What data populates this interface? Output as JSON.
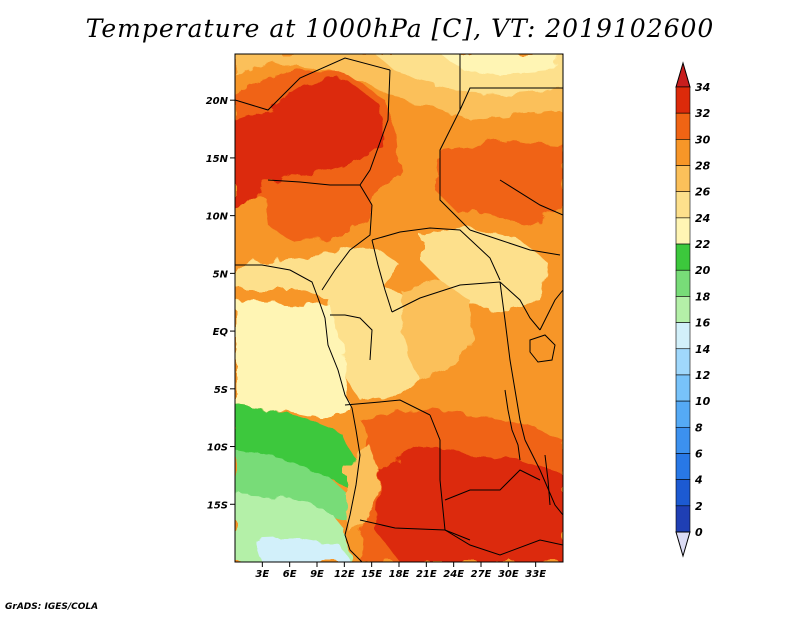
{
  "title": "Temperature at 1000hPa [C], VT: 2019102600",
  "credit": "GrADS: IGES/COLA",
  "map": {
    "lon_range": [
      0,
      36
    ],
    "lat_range": [
      -20,
      24
    ],
    "lon_ticks": [
      {
        "value": 3,
        "label": "3E"
      },
      {
        "value": 6,
        "label": "6E"
      },
      {
        "value": 9,
        "label": "9E"
      },
      {
        "value": 12,
        "label": "12E"
      },
      {
        "value": 15,
        "label": "15E"
      },
      {
        "value": 18,
        "label": "18E"
      },
      {
        "value": 21,
        "label": "21E"
      },
      {
        "value": 24,
        "label": "24E"
      },
      {
        "value": 27,
        "label": "27E"
      },
      {
        "value": 30,
        "label": "30E"
      },
      {
        "value": 33,
        "label": "33E"
      }
    ],
    "lat_ticks": [
      {
        "value": 20,
        "label": "20N"
      },
      {
        "value": 15,
        "label": "15N"
      },
      {
        "value": 10,
        "label": "10N"
      },
      {
        "value": 5,
        "label": "5N"
      },
      {
        "value": 0,
        "label": "EQ"
      },
      {
        "value": -5,
        "label": "5S"
      },
      {
        "value": -10,
        "label": "10S"
      },
      {
        "value": -15,
        "label": "15S"
      }
    ]
  },
  "colorbar": {
    "levels": [
      {
        "value": 0,
        "label": "0",
        "color": "#1a1a8c"
      },
      {
        "value": 2,
        "label": "2",
        "color": "#1f3fb4"
      },
      {
        "value": 4,
        "label": "4",
        "color": "#1c5ad2"
      },
      {
        "value": 6,
        "label": "6",
        "color": "#2878e6"
      },
      {
        "value": 8,
        "label": "8",
        "color": "#3c91ef"
      },
      {
        "value": 10,
        "label": "10",
        "color": "#55aaf5"
      },
      {
        "value": 12,
        "label": "12",
        "color": "#78c3fa"
      },
      {
        "value": 14,
        "label": "14",
        "color": "#a0d8fc"
      },
      {
        "value": 16,
        "label": "16",
        "color": "#d2f0fa"
      },
      {
        "value": 18,
        "label": "18",
        "color": "#b4f0a8"
      },
      {
        "value": 20,
        "label": "20",
        "color": "#78dc78"
      },
      {
        "value": 22,
        "label": "22",
        "color": "#3cc83c"
      },
      {
        "value": 24,
        "label": "24",
        "color": "#fff5b4"
      },
      {
        "value": 26,
        "label": "26",
        "color": "#fde08c"
      },
      {
        "value": 28,
        "label": "28",
        "color": "#fbc05a"
      },
      {
        "value": 30,
        "label": "30",
        "color": "#f79628"
      },
      {
        "value": 32,
        "label": "32",
        "color": "#f06414"
      },
      {
        "value": 34,
        "label": "34",
        "color": "#dc2a0a"
      }
    ],
    "under_color": "#dcdcf5",
    "over_color": "#c81e1e"
  }
}
